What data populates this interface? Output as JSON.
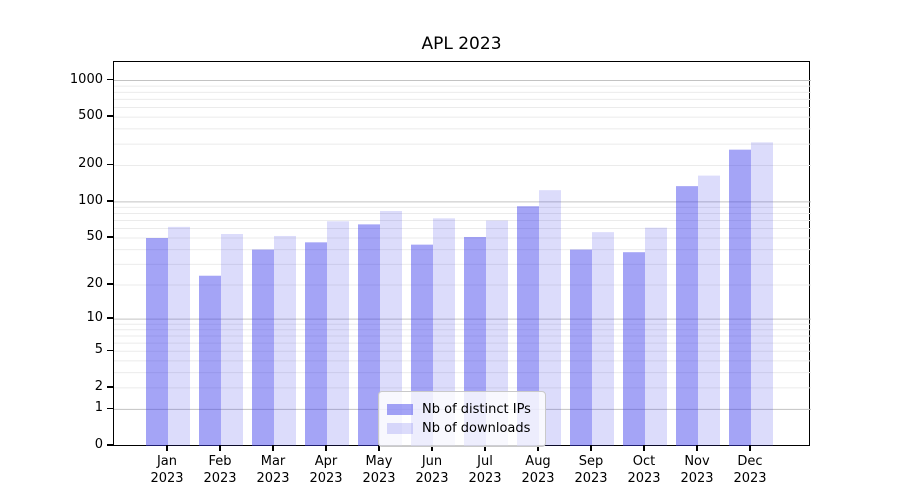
{
  "figure": {
    "title": "APL 2023"
  },
  "chart_data": {
    "type": "bar",
    "title": "APL 2023",
    "categories": [
      "Jan 2023",
      "Feb 2023",
      "Mar 2023",
      "Apr 2023",
      "May 2023",
      "Jun 2023",
      "Jul 2023",
      "Aug 2023",
      "Sep 2023",
      "Oct 2023",
      "Nov 2023",
      "Dec 2023"
    ],
    "series": [
      {
        "name": "Nb of distinct IPs",
        "color": "rgba(62,62,235,0.47)",
        "values": [
          50,
          24,
          40,
          46,
          65,
          44,
          51,
          92,
          40,
          38,
          135,
          270
        ]
      },
      {
        "name": "Nb of downloads",
        "color": "rgba(62,62,235,0.18)",
        "values": [
          62,
          54,
          52,
          69,
          84,
          73,
          70,
          125,
          56,
          61,
          165,
          310
        ]
      }
    ],
    "xlabel": "",
    "ylabel": "",
    "scale": "log1p",
    "ylim": [
      0,
      1450
    ],
    "y_ticks": [
      0,
      1,
      2,
      5,
      10,
      20,
      50,
      100,
      200,
      500,
      1000
    ],
    "y_major_grid": [
      1,
      10,
      100,
      1000
    ],
    "y_minor_grid": [
      2,
      3,
      4,
      5,
      6,
      7,
      8,
      9,
      20,
      30,
      40,
      50,
      60,
      70,
      80,
      90,
      200,
      300,
      400,
      500,
      600,
      700,
      800,
      900
    ],
    "grid": "on",
    "legend_position": "lower-center",
    "colors": {
      "bar_dark": "#a5a5f4",
      "bar_light": "#dcdcf9",
      "major_grid": "#c3c3c3",
      "minor_grid": "#ebebeb",
      "spine": "#000000"
    }
  }
}
